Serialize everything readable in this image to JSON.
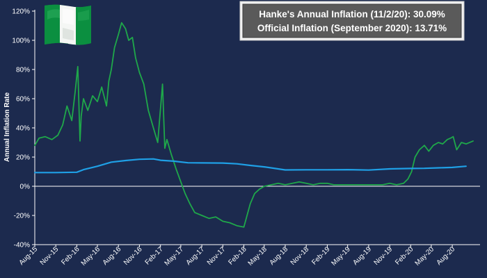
{
  "chart_data": {
    "type": "line",
    "title": "",
    "xlabel": "",
    "ylabel": "Annual Inflation Rate",
    "ylim": [
      -40,
      120
    ],
    "y_ticks": [
      -40,
      -20,
      0,
      20,
      40,
      60,
      80,
      100,
      120
    ],
    "y_tick_labels": [
      "-40%",
      "-20%",
      "0%",
      "20%",
      "40%",
      "60%",
      "80%",
      "100%",
      "120%"
    ],
    "x_range": [
      "2015-08-01",
      "2020-10-31"
    ],
    "x_ticks": [
      "2015-08-01",
      "2015-11-01",
      "2016-02-01",
      "2016-05-01",
      "2016-08-01",
      "2016-11-01",
      "2017-02-01",
      "2017-05-01",
      "2017-08-01",
      "2017-11-01",
      "2018-02-01",
      "2018-05-01",
      "2018-08-01",
      "2018-11-01",
      "2019-02-01",
      "2019-05-01",
      "2019-08-01",
      "2019-11-01",
      "2020-02-01",
      "2020-05-01",
      "2020-08-01"
    ],
    "x_tick_labels": [
      "Aug-15",
      "Nov-15",
      "Feb-16",
      "May-16",
      "Aug-16",
      "Nov-16",
      "Feb-17",
      "May-17",
      "Aug-17",
      "Nov-17",
      "Feb-18",
      "May-18",
      "Aug-18",
      "Nov-18",
      "Feb-19",
      "May-19",
      "Aug-19",
      "Nov-19",
      "Feb-20",
      "May-20",
      "Aug-20"
    ],
    "legend_position": "top-right",
    "grid": false,
    "annotations": [
      "Hanke's Annual Inflation (11/2/20): 30.09%",
      "Official Inflation (September 2020): 13.71%"
    ],
    "series": [
      {
        "color": "#1fa84a",
        "x": [
          "2015-08-01",
          "2015-08-20",
          "2015-09-15",
          "2015-10-15",
          "2015-11-10",
          "2015-12-01",
          "2015-12-20",
          "2016-01-10",
          "2016-01-25",
          "2016-02-05",
          "2016-02-15",
          "2016-02-20",
          "2016-03-01",
          "2016-03-20",
          "2016-04-10",
          "2016-05-01",
          "2016-05-20",
          "2016-06-10",
          "2016-06-20",
          "2016-07-01",
          "2016-07-15",
          "2016-08-01",
          "2016-08-15",
          "2016-09-01",
          "2016-09-15",
          "2016-10-01",
          "2016-10-15",
          "2016-11-01",
          "2016-11-20",
          "2016-12-10",
          "2017-01-01",
          "2017-01-20",
          "2017-02-10",
          "2017-02-20",
          "2017-03-01",
          "2017-03-20",
          "2017-04-10",
          "2017-05-01",
          "2017-05-20",
          "2017-06-10",
          "2017-07-01",
          "2017-08-01",
          "2017-09-01",
          "2017-10-01",
          "2017-11-01",
          "2017-12-01",
          "2018-01-01",
          "2018-02-01",
          "2018-02-15",
          "2018-03-01",
          "2018-03-20",
          "2018-04-10",
          "2018-05-01",
          "2018-06-01",
          "2018-07-01",
          "2018-08-01",
          "2018-09-01",
          "2018-10-01",
          "2018-11-01",
          "2018-12-01",
          "2019-01-01",
          "2019-02-01",
          "2019-03-01",
          "2019-04-01",
          "2019-05-01",
          "2019-06-01",
          "2019-07-01",
          "2019-08-01",
          "2019-09-01",
          "2019-10-01",
          "2019-11-01",
          "2019-12-01",
          "2020-01-01",
          "2020-01-20",
          "2020-02-05",
          "2020-02-20",
          "2020-03-10",
          "2020-04-01",
          "2020-04-20",
          "2020-05-10",
          "2020-06-01",
          "2020-06-20",
          "2020-07-10",
          "2020-07-25",
          "2020-08-05",
          "2020-08-20",
          "2020-09-10",
          "2020-10-01",
          "2020-10-31"
        ],
        "values": [
          28,
          33,
          34,
          32,
          35,
          42,
          55,
          45,
          65,
          82,
          31,
          48,
          60,
          52,
          62,
          58,
          68,
          55,
          72,
          80,
          95,
          104,
          112,
          108,
          100,
          102,
          88,
          78,
          70,
          52,
          40,
          30,
          70,
          26,
          32,
          22,
          12,
          3,
          -5,
          -12,
          -18,
          -20,
          -22,
          -21,
          -24,
          -25,
          -27,
          -28,
          -20,
          -12,
          -5,
          -2,
          0,
          1,
          2,
          1,
          2,
          3,
          2,
          1,
          2,
          2,
          1,
          1,
          1,
          1,
          1,
          1,
          1,
          1,
          2,
          1,
          2,
          5,
          10,
          20,
          25,
          28,
          24,
          28,
          30,
          29,
          32,
          33,
          34,
          25,
          30,
          29,
          31
        ]
      },
      {
        "color": "#1fa0e6",
        "x": [
          "2015-08-01",
          "2015-11-01",
          "2016-02-01",
          "2016-03-01",
          "2016-05-01",
          "2016-07-01",
          "2016-09-01",
          "2016-11-01",
          "2017-01-01",
          "2017-02-01",
          "2017-04-01",
          "2017-06-01",
          "2017-08-01",
          "2017-11-01",
          "2018-01-01",
          "2018-03-01",
          "2018-05-01",
          "2018-08-01",
          "2018-11-01",
          "2019-02-01",
          "2019-05-01",
          "2019-08-01",
          "2019-11-01",
          "2020-02-01",
          "2020-04-01",
          "2020-06-01",
          "2020-08-01",
          "2020-09-30"
        ],
        "values": [
          9.4,
          9.4,
          9.6,
          11.4,
          13.7,
          16.5,
          17.6,
          18.5,
          18.7,
          17.8,
          17.2,
          16.1,
          16,
          15.9,
          15.4,
          14.3,
          13.3,
          11.2,
          11.3,
          11.3,
          11.4,
          11.1,
          11.9,
          12.2,
          12.3,
          12.6,
          12.9,
          13.71
        ]
      }
    ]
  }
}
